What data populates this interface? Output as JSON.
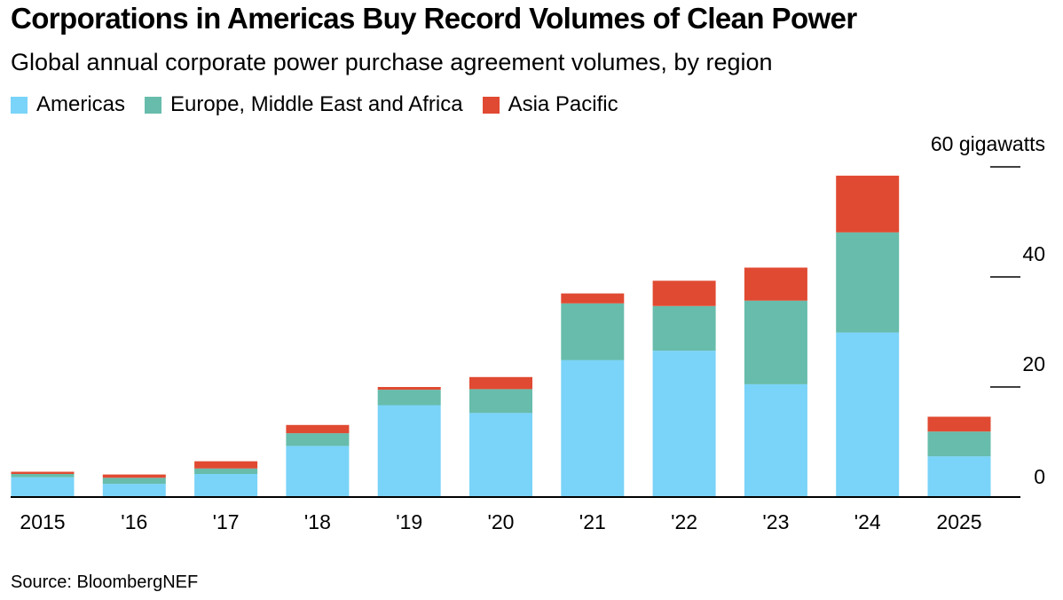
{
  "title": "Corporations in Americas Buy Record Volumes of Clean Power",
  "subtitle": "Global annual corporate power purchase agreement volumes, by region",
  "source": "Source: BloombergNEF",
  "colors": {
    "americas": "#7ad3f8",
    "emea": "#67bcab",
    "apac": "#e04a32",
    "axis": "#000000"
  },
  "legend": [
    {
      "label": "Americas",
      "color": "#7ad3f8"
    },
    {
      "label": "Europe, Middle East and Africa",
      "color": "#67bcab"
    },
    {
      "label": "Asia Pacific",
      "color": "#e04a32"
    }
  ],
  "chart_data": {
    "type": "bar",
    "stacked": true,
    "title": "Corporations in Americas Buy Record Volumes of Clean Power",
    "subtitle": "Global annual corporate power purchase agreement volumes, by region",
    "categories": [
      "2015",
      "'16",
      "'17",
      "'18",
      "'19",
      "'20",
      "'21",
      "'22",
      "'23",
      "'24",
      "2025"
    ],
    "series": [
      {
        "name": "Americas",
        "color": "#7ad3f8",
        "values": [
          3.6,
          2.4,
          4.2,
          9.3,
          16.7,
          15.3,
          24.9,
          26.6,
          20.5,
          29.9,
          7.4
        ]
      },
      {
        "name": "Europe, Middle East and Africa",
        "color": "#67bcab",
        "values": [
          0.6,
          1.1,
          1.0,
          2.3,
          2.8,
          4.3,
          10.3,
          8.1,
          15.2,
          18.2,
          4.5
        ]
      },
      {
        "name": "Asia Pacific",
        "color": "#e04a32",
        "values": [
          0.4,
          0.6,
          1.3,
          1.5,
          0.5,
          2.2,
          1.8,
          4.6,
          6.0,
          10.3,
          2.7
        ]
      }
    ],
    "y_ticks": [
      "0",
      "20",
      "40",
      "60 gigawatts"
    ],
    "y_tick_values": [
      0,
      20,
      40,
      60
    ],
    "ylim": [
      0,
      60
    ],
    "y_unit": "gigawatts",
    "y_axis_side": "right",
    "grid": false,
    "legend_position": "top-left"
  }
}
